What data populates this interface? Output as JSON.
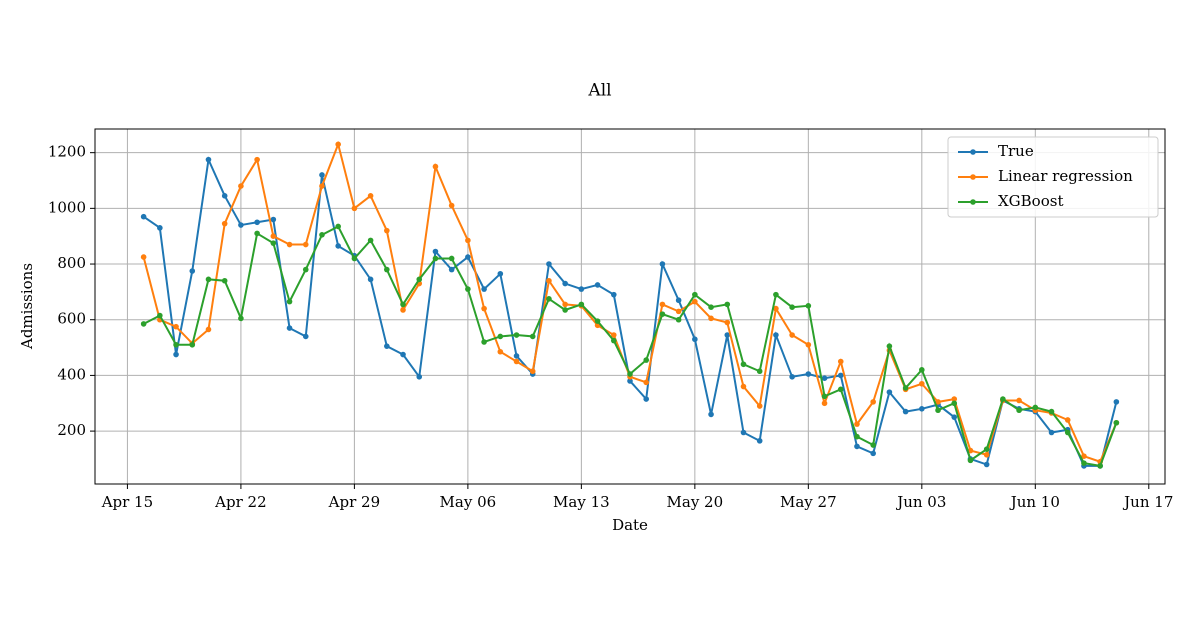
{
  "chart_data": {
    "type": "line",
    "title": "All",
    "x_label": "Date",
    "y_label": "Admissions",
    "x": [
      "04-16",
      "04-17",
      "04-18",
      "04-19",
      "04-20",
      "04-21",
      "04-22",
      "04-23",
      "04-24",
      "04-25",
      "04-26",
      "04-27",
      "04-28",
      "04-29",
      "04-30",
      "05-01",
      "05-02",
      "05-03",
      "05-04",
      "05-05",
      "05-06",
      "05-07",
      "05-08",
      "05-09",
      "05-10",
      "05-11",
      "05-12",
      "05-13",
      "05-14",
      "05-15",
      "05-16",
      "05-17",
      "05-18",
      "05-19",
      "05-20",
      "05-21",
      "05-22",
      "05-23",
      "05-24",
      "05-25",
      "05-26",
      "05-27",
      "05-28",
      "05-29",
      "05-30",
      "05-31",
      "06-01",
      "06-02",
      "06-03",
      "06-04",
      "06-05",
      "06-06",
      "06-07",
      "06-08",
      "06-09",
      "06-10",
      "06-11",
      "06-12",
      "06-13",
      "06-14",
      "06-15"
    ],
    "series": [
      {
        "name": "True",
        "color": "#1f77b4",
        "values": [
          970,
          930,
          475,
          775,
          1175,
          1045,
          940,
          950,
          960,
          570,
          540,
          1120,
          865,
          830,
          745,
          505,
          475,
          395,
          845,
          780,
          825,
          710,
          765,
          470,
          405,
          800,
          730,
          710,
          725,
          690,
          380,
          315,
          800,
          670,
          530,
          260,
          545,
          195,
          165,
          545,
          395,
          405,
          390,
          400,
          145,
          120,
          340,
          270,
          280,
          295,
          250,
          100,
          80,
          310,
          280,
          270,
          195,
          205,
          75,
          75,
          305
        ]
      },
      {
        "name": "Linear regression",
        "color": "#ff7f0e",
        "values": [
          825,
          600,
          575,
          515,
          565,
          945,
          1080,
          1175,
          900,
          870,
          870,
          1080,
          1230,
          1000,
          1045,
          920,
          635,
          730,
          1150,
          1010,
          885,
          640,
          485,
          450,
          415,
          740,
          655,
          650,
          580,
          545,
          395,
          375,
          655,
          630,
          665,
          605,
          590,
          360,
          290,
          640,
          545,
          510,
          300,
          450,
          225,
          305,
          490,
          350,
          370,
          305,
          315,
          130,
          115,
          310,
          310,
          275,
          265,
          240,
          110,
          90,
          230
        ]
      },
      {
        "name": "XGBoost",
        "color": "#2ca02c",
        "values": [
          585,
          615,
          510,
          510,
          745,
          740,
          605,
          910,
          875,
          665,
          780,
          905,
          935,
          820,
          885,
          780,
          655,
          745,
          820,
          820,
          710,
          520,
          540,
          545,
          540,
          675,
          635,
          655,
          595,
          525,
          405,
          455,
          620,
          600,
          690,
          645,
          655,
          440,
          415,
          690,
          645,
          650,
          325,
          350,
          180,
          150,
          505,
          355,
          420,
          275,
          300,
          95,
          135,
          315,
          275,
          285,
          270,
          195,
          85,
          75,
          230
        ]
      }
    ],
    "xlim": [
      "04-13",
      "06-18"
    ],
    "xticks": [
      {
        "value": "04-15",
        "label": "Apr 15"
      },
      {
        "value": "04-22",
        "label": "Apr 22"
      },
      {
        "value": "04-29",
        "label": "Apr 29"
      },
      {
        "value": "05-06",
        "label": "May 06"
      },
      {
        "value": "05-13",
        "label": "May 13"
      },
      {
        "value": "05-20",
        "label": "May 20"
      },
      {
        "value": "05-27",
        "label": "May 27"
      },
      {
        "value": "06-03",
        "label": "Jun 03"
      },
      {
        "value": "06-10",
        "label": "Jun 10"
      },
      {
        "value": "06-17",
        "label": "Jun 17"
      }
    ],
    "ylim": [
      10,
      1285
    ],
    "yticks": [
      200,
      400,
      600,
      800,
      1000,
      1200
    ],
    "grid": true,
    "legend": "upper right"
  }
}
